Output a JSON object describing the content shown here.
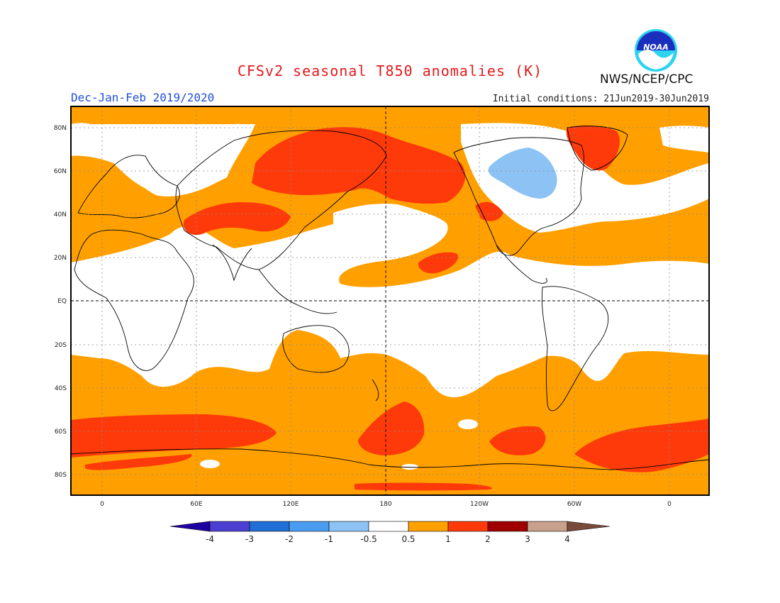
{
  "header": {
    "title": "CFSv2 seasonal T850 anomalies (K)",
    "season": "Dec-Jan-Feb 2019/2020",
    "initial_conditions": "Initial conditions: 21Jun2019-30Jun2019",
    "agency": "NWS/NCEP/CPC",
    "logo_text": "NOAA"
  },
  "map": {
    "projection": "equirectangular",
    "lon_labels": [
      "0",
      "60E",
      "120E",
      "180",
      "120W",
      "60W",
      "0"
    ],
    "lat_labels": [
      "80N",
      "60N",
      "40N",
      "20N",
      "EQ",
      "20S",
      "40S",
      "60S",
      "80S"
    ]
  },
  "colors": {
    "n4": "#1e00a0",
    "n3": "#4a3fd0",
    "n2": "#1f6fd6",
    "n1": "#4a9cf0",
    "n05": "#8dc2f5",
    "white": "#ffffff",
    "p05": "#ffa000",
    "p1": "#ff3a0a",
    "p2": "#a00000",
    "p3": "#c8a08c",
    "p4": "#7a4a3a"
  },
  "colorbar": {
    "labels": [
      "-4",
      "-3",
      "-2",
      "-1",
      "-0.5",
      "0.5",
      "1",
      "2",
      "3",
      "4"
    ]
  }
}
